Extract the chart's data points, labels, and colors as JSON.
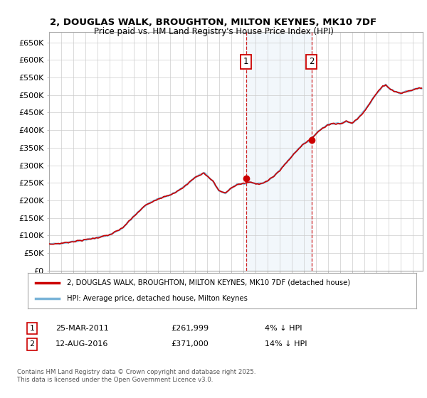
{
  "title": "2, DOUGLAS WALK, BROUGHTON, MILTON KEYNES, MK10 7DF",
  "subtitle": "Price paid vs. HM Land Registry's House Price Index (HPI)",
  "ylabel_ticks": [
    "£0",
    "£50K",
    "£100K",
    "£150K",
    "£200K",
    "£250K",
    "£300K",
    "£350K",
    "£400K",
    "£450K",
    "£500K",
    "£550K",
    "£600K",
    "£650K"
  ],
  "ytick_values": [
    0,
    50000,
    100000,
    150000,
    200000,
    250000,
    300000,
    350000,
    400000,
    450000,
    500000,
    550000,
    600000,
    650000
  ],
  "ylim": [
    0,
    680000
  ],
  "xlim_start": 1995.0,
  "xlim_end": 2025.8,
  "hpi_color": "#7ab4d8",
  "price_color": "#cc0000",
  "marker1_x": 2011.23,
  "marker1_y": 261999,
  "marker2_x": 2016.62,
  "marker2_y": 371000,
  "marker1_label": "1",
  "marker2_label": "2",
  "marker1_date": "25-MAR-2011",
  "marker1_price": "£261,999",
  "marker1_hpi": "4% ↓ HPI",
  "marker2_date": "12-AUG-2016",
  "marker2_price": "£371,000",
  "marker2_hpi": "14% ↓ HPI",
  "legend_line1": "2, DOUGLAS WALK, BROUGHTON, MILTON KEYNES, MK10 7DF (detached house)",
  "legend_line2": "HPI: Average price, detached house, Milton Keynes",
  "footnote": "Contains HM Land Registry data © Crown copyright and database right 2025.\nThis data is licensed under the Open Government Licence v3.0.",
  "background_fill_color": "#ddeeff",
  "vline_color": "#cc0000",
  "key_points_hpi": [
    [
      1995.0,
      75000
    ],
    [
      1996.0,
      78000
    ],
    [
      1997.0,
      83000
    ],
    [
      1998.0,
      88000
    ],
    [
      1999.0,
      94000
    ],
    [
      2000.0,
      102000
    ],
    [
      2001.0,
      120000
    ],
    [
      2002.0,
      155000
    ],
    [
      2003.0,
      188000
    ],
    [
      2004.0,
      205000
    ],
    [
      2005.0,
      215000
    ],
    [
      2006.0,
      235000
    ],
    [
      2007.0,
      265000
    ],
    [
      2007.75,
      278000
    ],
    [
      2008.5,
      255000
    ],
    [
      2009.0,
      228000
    ],
    [
      2009.5,
      220000
    ],
    [
      2010.0,
      235000
    ],
    [
      2010.5,
      245000
    ],
    [
      2011.0,
      248000
    ],
    [
      2011.5,
      252000
    ],
    [
      2012.0,
      248000
    ],
    [
      2012.5,
      248000
    ],
    [
      2013.0,
      255000
    ],
    [
      2013.5,
      268000
    ],
    [
      2014.0,
      285000
    ],
    [
      2014.5,
      305000
    ],
    [
      2015.0,
      325000
    ],
    [
      2015.5,
      345000
    ],
    [
      2016.0,
      362000
    ],
    [
      2016.5,
      372000
    ],
    [
      2017.0,
      390000
    ],
    [
      2017.5,
      405000
    ],
    [
      2018.0,
      415000
    ],
    [
      2018.5,
      420000
    ],
    [
      2019.0,
      418000
    ],
    [
      2019.5,
      425000
    ],
    [
      2020.0,
      420000
    ],
    [
      2020.5,
      435000
    ],
    [
      2021.0,
      455000
    ],
    [
      2021.5,
      480000
    ],
    [
      2022.0,
      505000
    ],
    [
      2022.5,
      525000
    ],
    [
      2022.75,
      530000
    ],
    [
      2023.0,
      520000
    ],
    [
      2023.5,
      510000
    ],
    [
      2024.0,
      505000
    ],
    [
      2024.5,
      510000
    ],
    [
      2025.0,
      515000
    ],
    [
      2025.5,
      520000
    ]
  ]
}
